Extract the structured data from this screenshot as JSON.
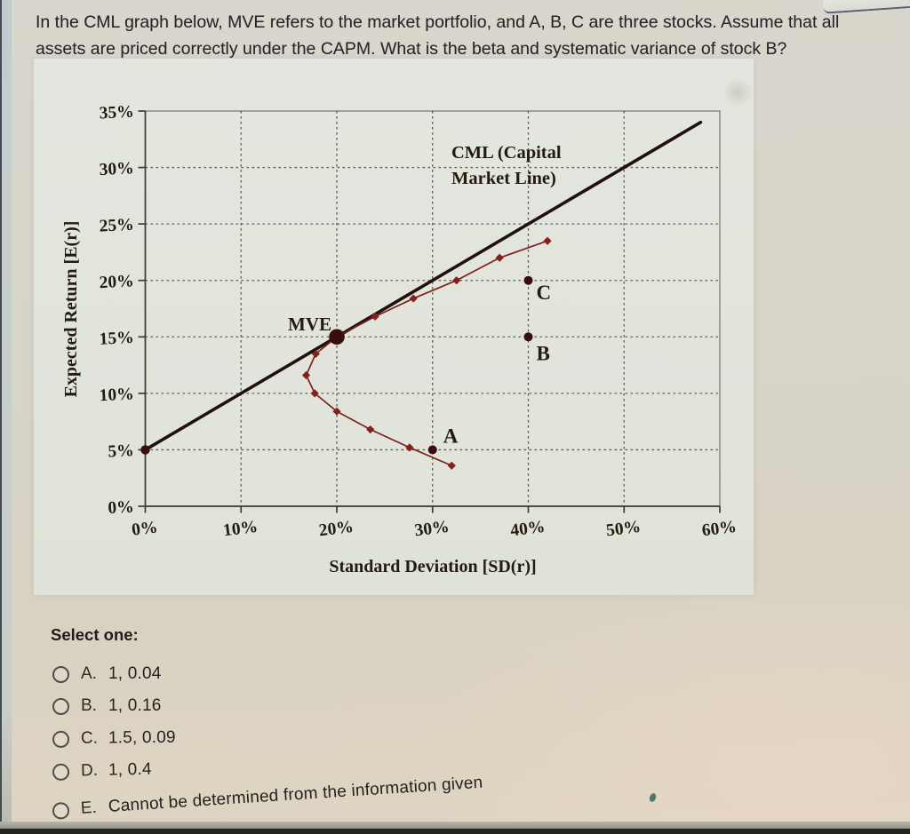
{
  "question": {
    "line1": "In the CML graph below, MVE refers to the market portfolio, and A, B, C are three stocks. Assume that all",
    "line2": "assets are priced correctly under the CAPM. What is the beta and systematic variance of stock B?"
  },
  "chart_data": {
    "type": "line",
    "title": "",
    "xlabel": "Standard Deviation [SD(r)]",
    "ylabel": "Expected Return [E(r)]",
    "xlim": [
      0,
      60
    ],
    "ylim": [
      0,
      35
    ],
    "x_ticks": {
      "values": [
        0,
        10,
        20,
        30,
        40,
        50,
        60
      ],
      "labels": [
        "0%",
        "10%",
        "20%",
        "30%",
        "40%",
        "50%",
        "60%"
      ]
    },
    "y_ticks": {
      "values": [
        0,
        5,
        10,
        15,
        20,
        25,
        30,
        35
      ],
      "labels": [
        "0%",
        "5%",
        "10%",
        "15%",
        "20%",
        "25%",
        "30%",
        "35%"
      ]
    },
    "grid": {
      "style": "dashed",
      "x_values": [
        10,
        20,
        30,
        40,
        50
      ],
      "y_values": [
        5,
        10,
        15,
        20,
        25,
        30
      ]
    },
    "series": {
      "cml": {
        "name": "CML (Capital Market Line)",
        "label_lines": [
          "CML (Capital",
          "Market Line)"
        ],
        "points": [
          [
            0,
            5
          ],
          [
            58,
            34
          ]
        ]
      },
      "efficient_frontier": {
        "name": "Efficient frontier (minimum-variance curve)",
        "marker": "diamond",
        "points": [
          [
            42,
            23.5
          ],
          [
            37,
            22
          ],
          [
            32.5,
            20
          ],
          [
            28,
            18.4
          ],
          [
            24,
            16.8
          ],
          [
            20,
            15
          ],
          [
            17.8,
            13.5
          ],
          [
            16.8,
            11.6
          ],
          [
            17.7,
            10
          ],
          [
            20,
            8.4
          ],
          [
            23.5,
            6.8
          ],
          [
            27.6,
            5.2
          ],
          [
            32,
            3.6
          ]
        ]
      }
    },
    "points": [
      {
        "label": "MVE",
        "x": 20,
        "y": 15
      },
      {
        "label": "A",
        "x": 30,
        "y": 5
      },
      {
        "label": "B",
        "x": 40,
        "y": 15
      },
      {
        "label": "C",
        "x": 40,
        "y": 20
      },
      {
        "label": "",
        "x": 0,
        "y": 5
      }
    ],
    "colors": {
      "cml": "#201010",
      "frontier": "#7e201b",
      "frontier_marker": "#84211c",
      "points": "#3a0e0c",
      "chart_text": "#241a0e"
    },
    "legend_position": "none"
  },
  "options": {
    "prompt": "Select one:",
    "items": [
      {
        "letter": "A.",
        "text": "1, 0.04"
      },
      {
        "letter": "B.",
        "text": "1, 0.16"
      },
      {
        "letter": "C.",
        "text": "1.5, 0.09"
      },
      {
        "letter": "D.",
        "text": "1, 0.4"
      },
      {
        "letter": "E.",
        "text": "Cannot be determined from the information given"
      }
    ]
  }
}
